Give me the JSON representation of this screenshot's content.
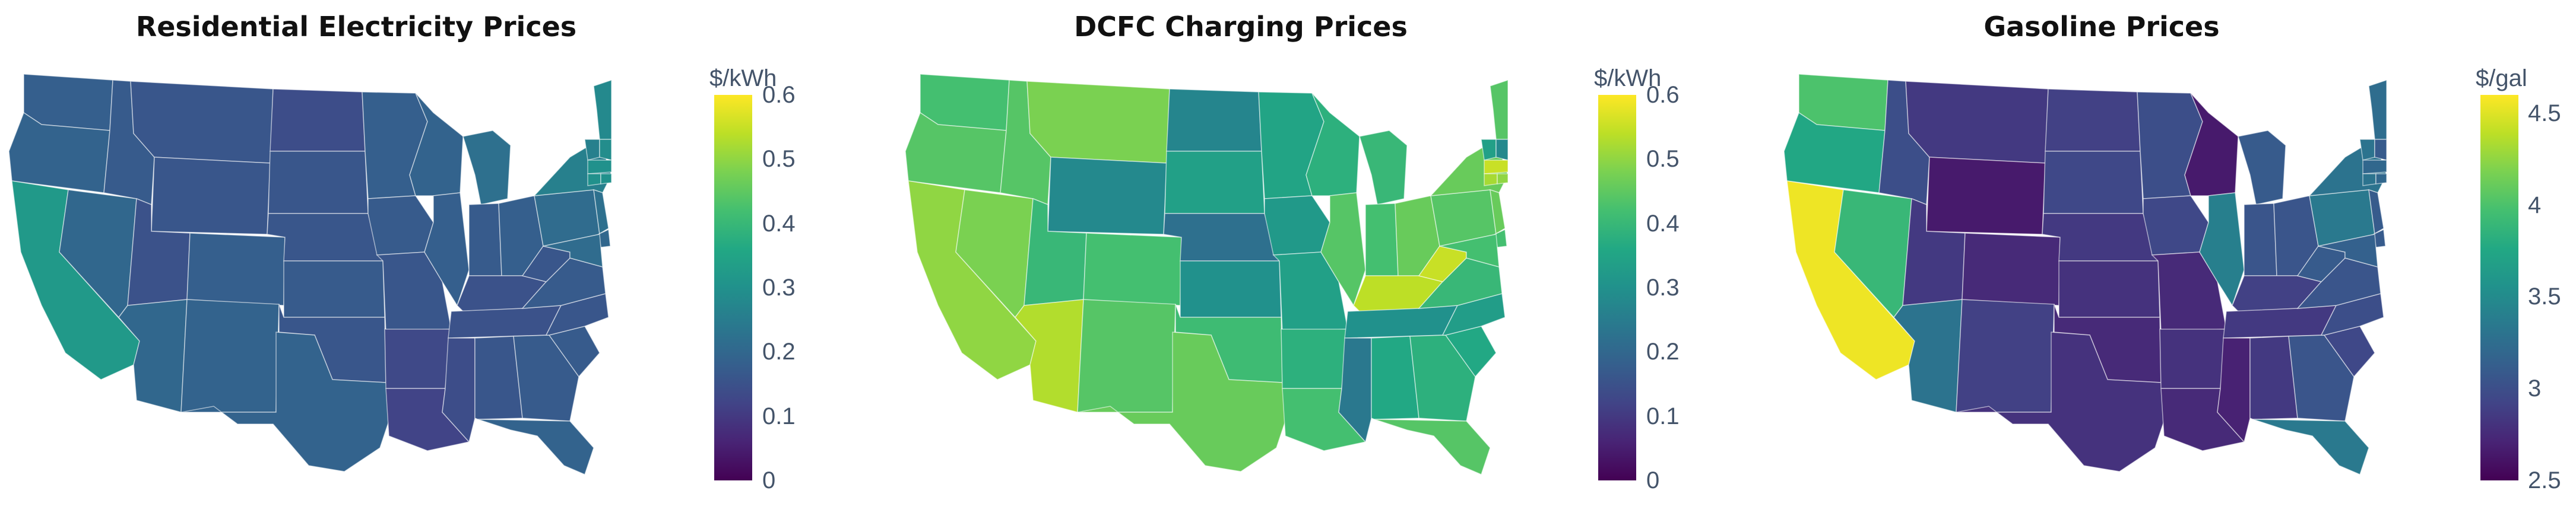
{
  "colormap": [
    "#440154",
    "#482475",
    "#414487",
    "#355f8d",
    "#2a788e",
    "#21918c",
    "#22a884",
    "#44bf70",
    "#7ad151",
    "#bddf26",
    "#fde725"
  ],
  "panels": [
    {
      "title": "Residential Electricity Prices",
      "unit": "$/kWh",
      "range": [
        0,
        0.6
      ],
      "ticks": [
        "0",
        "0.1",
        "0.2",
        "0.3",
        "0.4",
        "0.5",
        "0.6"
      ],
      "tick_values": [
        0,
        0.1,
        0.2,
        0.3,
        0.4,
        0.5,
        0.6
      ],
      "states": {
        "WA": 0.18,
        "OR": 0.19,
        "CA": 0.32,
        "NV": 0.2,
        "ID": 0.17,
        "MT": 0.16,
        "WY": 0.16,
        "UT": 0.15,
        "AZ": 0.2,
        "CO": 0.18,
        "NM": 0.19,
        "ND": 0.14,
        "SD": 0.16,
        "NE": 0.16,
        "KS": 0.17,
        "OK": 0.16,
        "TX": 0.19,
        "MN": 0.18,
        "IA": 0.17,
        "MO": 0.16,
        "AR": 0.13,
        "LA": 0.12,
        "WI": 0.19,
        "IL": 0.18,
        "MI": 0.22,
        "IN": 0.17,
        "OH": 0.18,
        "KY": 0.15,
        "TN": 0.15,
        "MS": 0.14,
        "AL": 0.16,
        "GA": 0.17,
        "FL": 0.19,
        "SC": 0.17,
        "NC": 0.16,
        "VA": 0.17,
        "WV": 0.16,
        "PA": 0.21,
        "NY": 0.26,
        "ME": 0.28,
        "VT": 0.26,
        "NH": 0.29,
        "MA": 0.3,
        "CT": 0.3,
        "NJ": 0.22,
        "DE": 0.2,
        "MD": 0.21,
        "RI": 0.3
      }
    },
    {
      "title": "DCFC Charging Prices",
      "unit": "$/kWh",
      "range": [
        0,
        0.6
      ],
      "ticks": [
        "0",
        "0.1",
        "0.2",
        "0.3",
        "0.4",
        "0.5",
        "0.6"
      ],
      "tick_values": [
        0,
        0.1,
        0.2,
        0.3,
        0.4,
        0.5,
        0.6
      ],
      "states": {
        "WA": 0.42,
        "OR": 0.44,
        "CA": 0.5,
        "NV": 0.48,
        "ID": 0.44,
        "MT": 0.48,
        "WY": 0.28,
        "UT": 0.4,
        "AZ": 0.53,
        "CO": 0.42,
        "NM": 0.44,
        "ND": 0.27,
        "SD": 0.34,
        "NE": 0.22,
        "KS": 0.3,
        "OK": 0.41,
        "TX": 0.46,
        "MN": 0.35,
        "IA": 0.32,
        "MO": 0.34,
        "AR": 0.38,
        "LA": 0.42,
        "WI": 0.38,
        "IL": 0.44,
        "MI": 0.4,
        "IN": 0.42,
        "OH": 0.46,
        "KY": 0.54,
        "TN": 0.3,
        "MS": 0.24,
        "AL": 0.36,
        "GA": 0.38,
        "FL": 0.44,
        "SC": 0.36,
        "NC": 0.33,
        "VA": 0.4,
        "WV": 0.55,
        "PA": 0.44,
        "NY": 0.46,
        "ME": 0.44,
        "VT": 0.34,
        "NH": 0.28,
        "MA": 0.55,
        "CT": 0.52,
        "NJ": 0.46,
        "DE": 0.42,
        "MD": 0.42,
        "RI": 0.5
      }
    },
    {
      "title": "Gasoline Prices",
      "unit": "$/gal",
      "range": [
        2.5,
        4.6
      ],
      "ticks": [
        "2.5",
        "3",
        "3.5",
        "4",
        "4.5"
      ],
      "tick_values": [
        2.5,
        3,
        3.5,
        4,
        4.5
      ],
      "states": {
        "WA": 4.0,
        "OR": 3.75,
        "CA": 4.55,
        "NV": 3.9,
        "ID": 3.0,
        "MT": 2.85,
        "WY": 2.65,
        "UT": 2.85,
        "AZ": 3.3,
        "CO": 2.75,
        "NM": 2.9,
        "ND": 2.9,
        "SD": 2.95,
        "NE": 2.85,
        "KS": 2.8,
        "OK": 2.75,
        "TX": 2.8,
        "MN": 3.0,
        "IA": 2.95,
        "MO": 2.75,
        "AR": 2.8,
        "LA": 2.75,
        "WI": 2.65,
        "IL": 3.4,
        "MI": 3.1,
        "IN": 3.05,
        "OH": 3.05,
        "KY": 2.9,
        "TN": 2.85,
        "MS": 2.7,
        "AL": 2.85,
        "GA": 3.05,
        "FL": 3.35,
        "SC": 2.95,
        "NC": 3.0,
        "VA": 3.05,
        "WV": 3.1,
        "PA": 3.35,
        "NY": 3.3,
        "ME": 3.25,
        "VT": 3.3,
        "NH": 3.1,
        "MA": 3.2,
        "CT": 3.3,
        "NJ": 3.1,
        "DE": 3.1,
        "MD": 3.15,
        "RI": 3.2
      }
    }
  ]
}
